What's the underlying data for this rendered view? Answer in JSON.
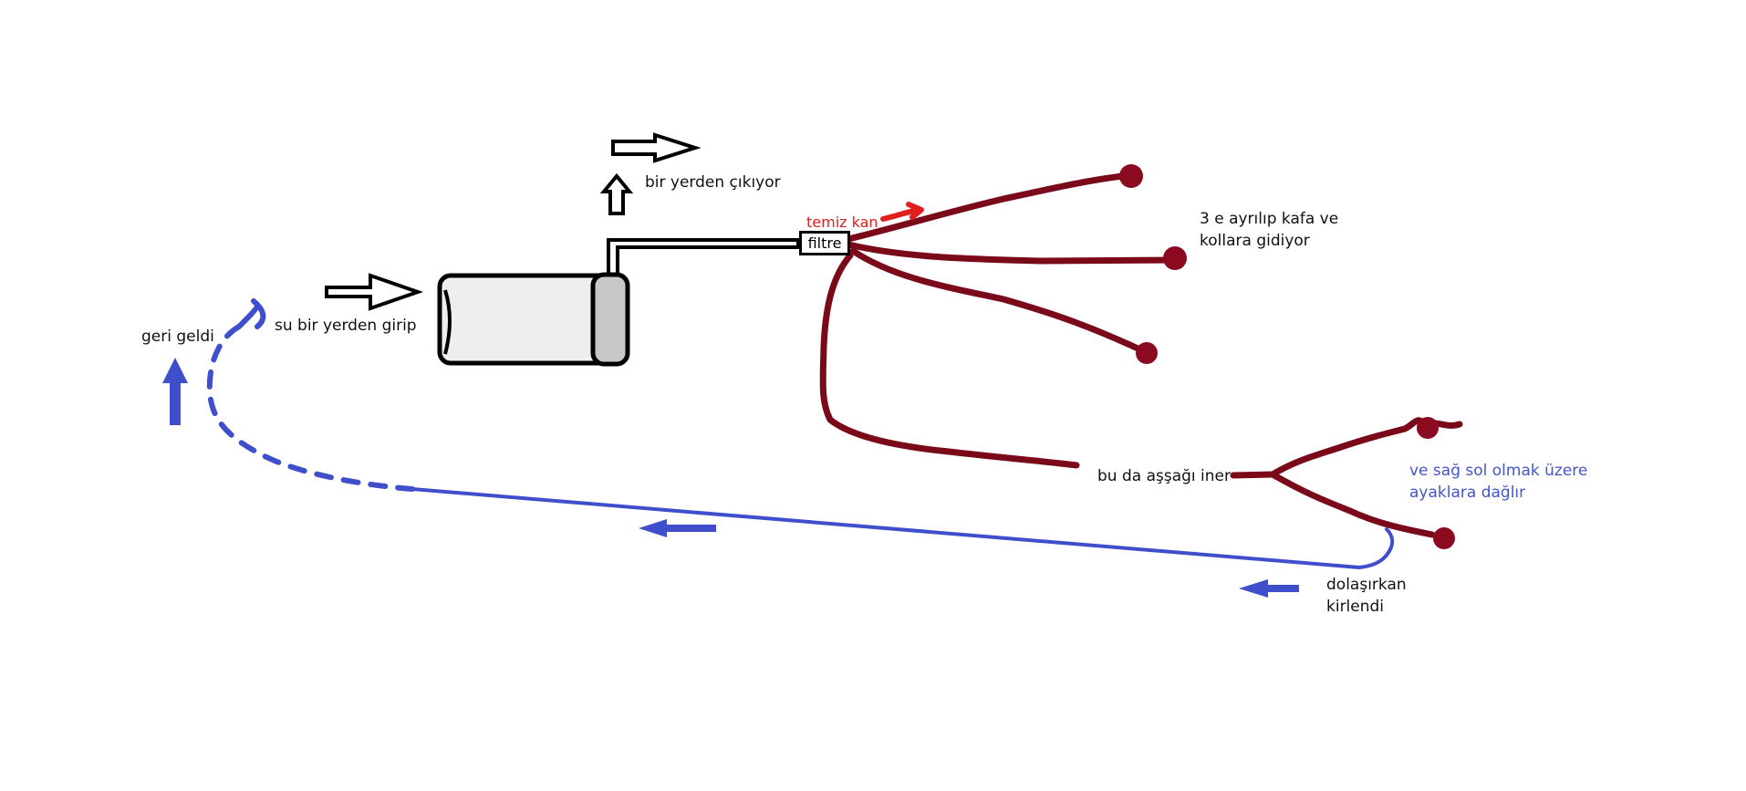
{
  "labels": {
    "water_in": "su bir yerden girip",
    "water_out": "bir yerden çıkıyor",
    "filter": "filtre",
    "clean_blood": "temiz kan",
    "head_arms_line1": "3 e ayrılıp kafa ve",
    "head_arms_line2": "kollara gidiyor",
    "goes_down": "bu da aşşağı iner",
    "legs_line1": "ve sağ sol olmak üzere",
    "legs_line2": "ayaklara dağlır",
    "dirty_line1": "dolaşırkan",
    "dirty_line2": "kirlendi",
    "came_back": "geri geldi"
  },
  "colors": {
    "artery": "#7a0a1a",
    "artery_dot": "#8b0a20",
    "vein": "#3f4fcc",
    "clean_label": "#e02020",
    "outline": "#000000",
    "tank_body": "#eeeeee",
    "tank_cap": "#c8c8c8"
  }
}
